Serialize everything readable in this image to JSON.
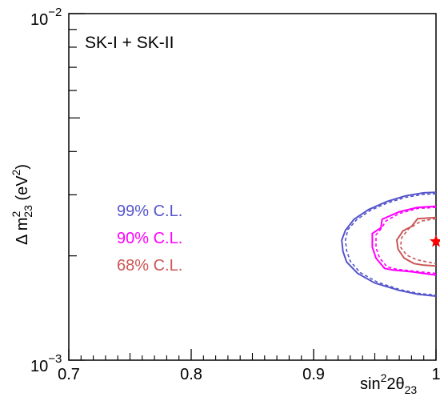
{
  "chart_data": {
    "type": "line",
    "title": "",
    "annotation": "SK-I + SK-II",
    "xlabel": {
      "base": "sin",
      "sup": "2",
      "mid": "2θ",
      "sub": "23"
    },
    "ylabel": {
      "pre": "Δ m",
      "sup": "2",
      "sub": "23",
      "post_pre": " (eV",
      "post_sup": "2",
      "post_end": ")"
    },
    "x_scale": "linear",
    "y_scale": "log",
    "xlim": [
      0.7,
      1.0
    ],
    "ylim": [
      0.001,
      0.01
    ],
    "x_ticks": [
      {
        "value": 0.7,
        "label": "0.7"
      },
      {
        "value": 0.8,
        "label": "0.8"
      },
      {
        "value": 0.9,
        "label": "0.9"
      },
      {
        "value": 1.0,
        "label": "1"
      }
    ],
    "y_ticks": [
      {
        "value": 0.001,
        "base": "10",
        "exp": "−3"
      },
      {
        "value": 0.01,
        "base": "10",
        "exp": "−2"
      }
    ],
    "grid": false,
    "legend_placement": "middle-left",
    "best_fit": {
      "x": 1.0,
      "y": 0.0022,
      "color": "#ff0000",
      "marker": "star"
    },
    "series": [
      {
        "name": "99% C.L.",
        "color": "#5555cc",
        "solid": [
          [
            1.0,
            0.00305
          ],
          [
            0.99,
            0.00304
          ],
          [
            0.975,
            0.00298
          ],
          [
            0.96,
            0.00287
          ],
          [
            0.945,
            0.00272
          ],
          [
            0.933,
            0.00255
          ],
          [
            0.926,
            0.00237
          ],
          [
            0.923,
            0.00222
          ],
          [
            0.924,
            0.00206
          ],
          [
            0.927,
            0.00192
          ],
          [
            0.936,
            0.00178
          ],
          [
            0.95,
            0.00167
          ],
          [
            0.97,
            0.00159
          ],
          [
            0.985,
            0.00155
          ],
          [
            1.0,
            0.00153
          ]
        ],
        "dashed": [
          [
            1.0,
            0.00302
          ],
          [
            0.99,
            0.00301
          ],
          [
            0.975,
            0.00295
          ],
          [
            0.96,
            0.00284
          ],
          [
            0.946,
            0.0027
          ],
          [
            0.935,
            0.00254
          ],
          [
            0.928,
            0.00238
          ],
          [
            0.926,
            0.00222
          ],
          [
            0.927,
            0.00207
          ],
          [
            0.93,
            0.00193
          ],
          [
            0.938,
            0.00179
          ],
          [
            0.952,
            0.00168
          ],
          [
            0.97,
            0.0016
          ],
          [
            0.985,
            0.00156
          ],
          [
            1.0,
            0.00154
          ]
        ]
      },
      {
        "name": "90% C.L.",
        "color": "#ff00ff",
        "solid": [
          [
            1.0,
            0.00278
          ],
          [
            0.985,
            0.00276
          ],
          [
            0.97,
            0.00268
          ],
          [
            0.956,
            0.00255
          ],
          [
            0.955,
            0.00241
          ],
          [
            0.948,
            0.00232
          ],
          [
            0.948,
            0.00212
          ],
          [
            0.951,
            0.00197
          ],
          [
            0.958,
            0.00184
          ],
          [
            0.965,
            0.00182
          ],
          [
            0.98,
            0.0018
          ],
          [
            1.0,
            0.00176
          ]
        ],
        "dashed": [
          [
            1.0,
            0.00276
          ],
          [
            0.985,
            0.00274
          ],
          [
            0.97,
            0.00265
          ],
          [
            0.959,
            0.00252
          ],
          [
            0.955,
            0.00239
          ],
          [
            0.951,
            0.0023
          ],
          [
            0.951,
            0.00211
          ],
          [
            0.954,
            0.00197
          ],
          [
            0.96,
            0.00186
          ],
          [
            0.968,
            0.00183
          ],
          [
            0.98,
            0.00181
          ],
          [
            1.0,
            0.00178
          ]
        ]
      },
      {
        "name": "68% C.L.",
        "color": "#cc5555",
        "solid": [
          [
            1.0,
            0.00258
          ],
          [
            0.985,
            0.00256
          ],
          [
            0.98,
            0.00243
          ],
          [
            0.973,
            0.00236
          ],
          [
            0.968,
            0.00222
          ],
          [
            0.969,
            0.00209
          ],
          [
            0.974,
            0.00197
          ],
          [
            0.982,
            0.0019
          ],
          [
            0.99,
            0.00188
          ],
          [
            1.0,
            0.00187
          ]
        ],
        "dashed": [
          [
            1.0,
            0.00256
          ],
          [
            0.988,
            0.00252
          ],
          [
            0.978,
            0.0024
          ],
          [
            0.972,
            0.00226
          ],
          [
            0.971,
            0.00212
          ],
          [
            0.976,
            0.00201
          ],
          [
            0.984,
            0.00195
          ],
          [
            0.993,
            0.00192
          ],
          [
            1.0,
            0.0019
          ]
        ]
      }
    ]
  }
}
